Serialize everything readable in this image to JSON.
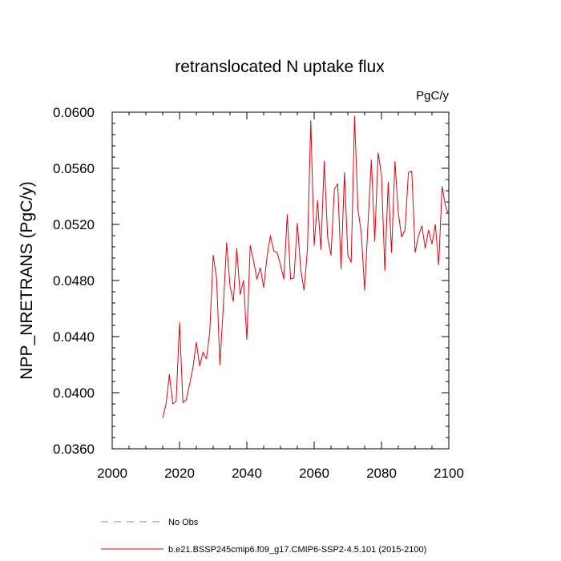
{
  "chart_data": {
    "type": "line",
    "title": "retranslocated N uptake flux",
    "units_label": "PgC/y",
    "xlabel": "",
    "ylabel": "NPP_NRETRANS  (PgC/y)",
    "xlim": [
      2000,
      2100
    ],
    "ylim": [
      0.036,
      0.06
    ],
    "x_ticks": [
      2000,
      2020,
      2040,
      2060,
      2080,
      2100
    ],
    "x_tick_labels": [
      "2000",
      "2020",
      "2040",
      "2060",
      "2080",
      "2100"
    ],
    "y_ticks": [
      0.036,
      0.04,
      0.044,
      0.048,
      0.052,
      0.056,
      0.06
    ],
    "y_tick_labels": [
      "0.0360",
      "0.0400",
      "0.0440",
      "0.0480",
      "0.0520",
      "0.0560",
      "0.0600"
    ],
    "grid": false,
    "legend_position": "bottom",
    "series": [
      {
        "name": "b.e21.BSSP245cmip6.f09_g17.CMIP6-SSP2-4.5.101 (2015-2100)",
        "color": "#e8000b",
        "style": "solid",
        "x": [
          2015,
          2016,
          2017,
          2018,
          2019,
          2020,
          2021,
          2022,
          2023,
          2024,
          2025,
          2026,
          2027,
          2028,
          2029,
          2030,
          2031,
          2032,
          2033,
          2034,
          2035,
          2036,
          2037,
          2038,
          2039,
          2040,
          2041,
          2042,
          2043,
          2044,
          2045,
          2046,
          2047,
          2048,
          2049,
          2050,
          2051,
          2052,
          2053,
          2054,
          2055,
          2056,
          2057,
          2058,
          2059,
          2060,
          2061,
          2062,
          2063,
          2064,
          2065,
          2066,
          2067,
          2068,
          2069,
          2070,
          2071,
          2072,
          2073,
          2074,
          2075,
          2076,
          2077,
          2078,
          2079,
          2080,
          2081,
          2082,
          2083,
          2084,
          2085,
          2086,
          2087,
          2088,
          2089,
          2090,
          2091,
          2092,
          2093,
          2094,
          2095,
          2096,
          2097,
          2098,
          2099,
          2100
        ],
        "values": [
          0.0382,
          0.0392,
          0.0413,
          0.0392,
          0.0394,
          0.045,
          0.0393,
          0.0395,
          0.0406,
          0.0418,
          0.0436,
          0.0419,
          0.0429,
          0.0424,
          0.0444,
          0.0498,
          0.0482,
          0.042,
          0.0461,
          0.0507,
          0.0476,
          0.0465,
          0.0503,
          0.047,
          0.048,
          0.0438,
          0.0505,
          0.0494,
          0.0481,
          0.0489,
          0.0475,
          0.0497,
          0.0512,
          0.0501,
          0.05,
          0.0491,
          0.0481,
          0.0527,
          0.0481,
          0.0482,
          0.0521,
          0.0488,
          0.0473,
          0.0502,
          0.0594,
          0.0505,
          0.0537,
          0.0502,
          0.0565,
          0.0511,
          0.0498,
          0.0545,
          0.0549,
          0.0488,
          0.0557,
          0.0498,
          0.0493,
          0.0597,
          0.0531,
          0.0514,
          0.0473,
          0.0521,
          0.0566,
          0.0508,
          0.0571,
          0.0555,
          0.0487,
          0.055,
          0.05,
          0.0565,
          0.0528,
          0.0511,
          0.0516,
          0.0557,
          0.0558,
          0.05,
          0.0512,
          0.0519,
          0.0503,
          0.0516,
          0.0506,
          0.052,
          0.0491,
          0.0547,
          0.0533,
          0.0527
        ]
      }
    ],
    "legend": [
      {
        "label": "No Obs",
        "color": "#7f7fff",
        "style": "dashed"
      },
      {
        "label": "b.e21.BSSP245cmip6.f09_g17.CMIP6-SSP2-4.5.101 (2015-2100)",
        "color": "#e8000b",
        "style": "solid"
      }
    ]
  }
}
